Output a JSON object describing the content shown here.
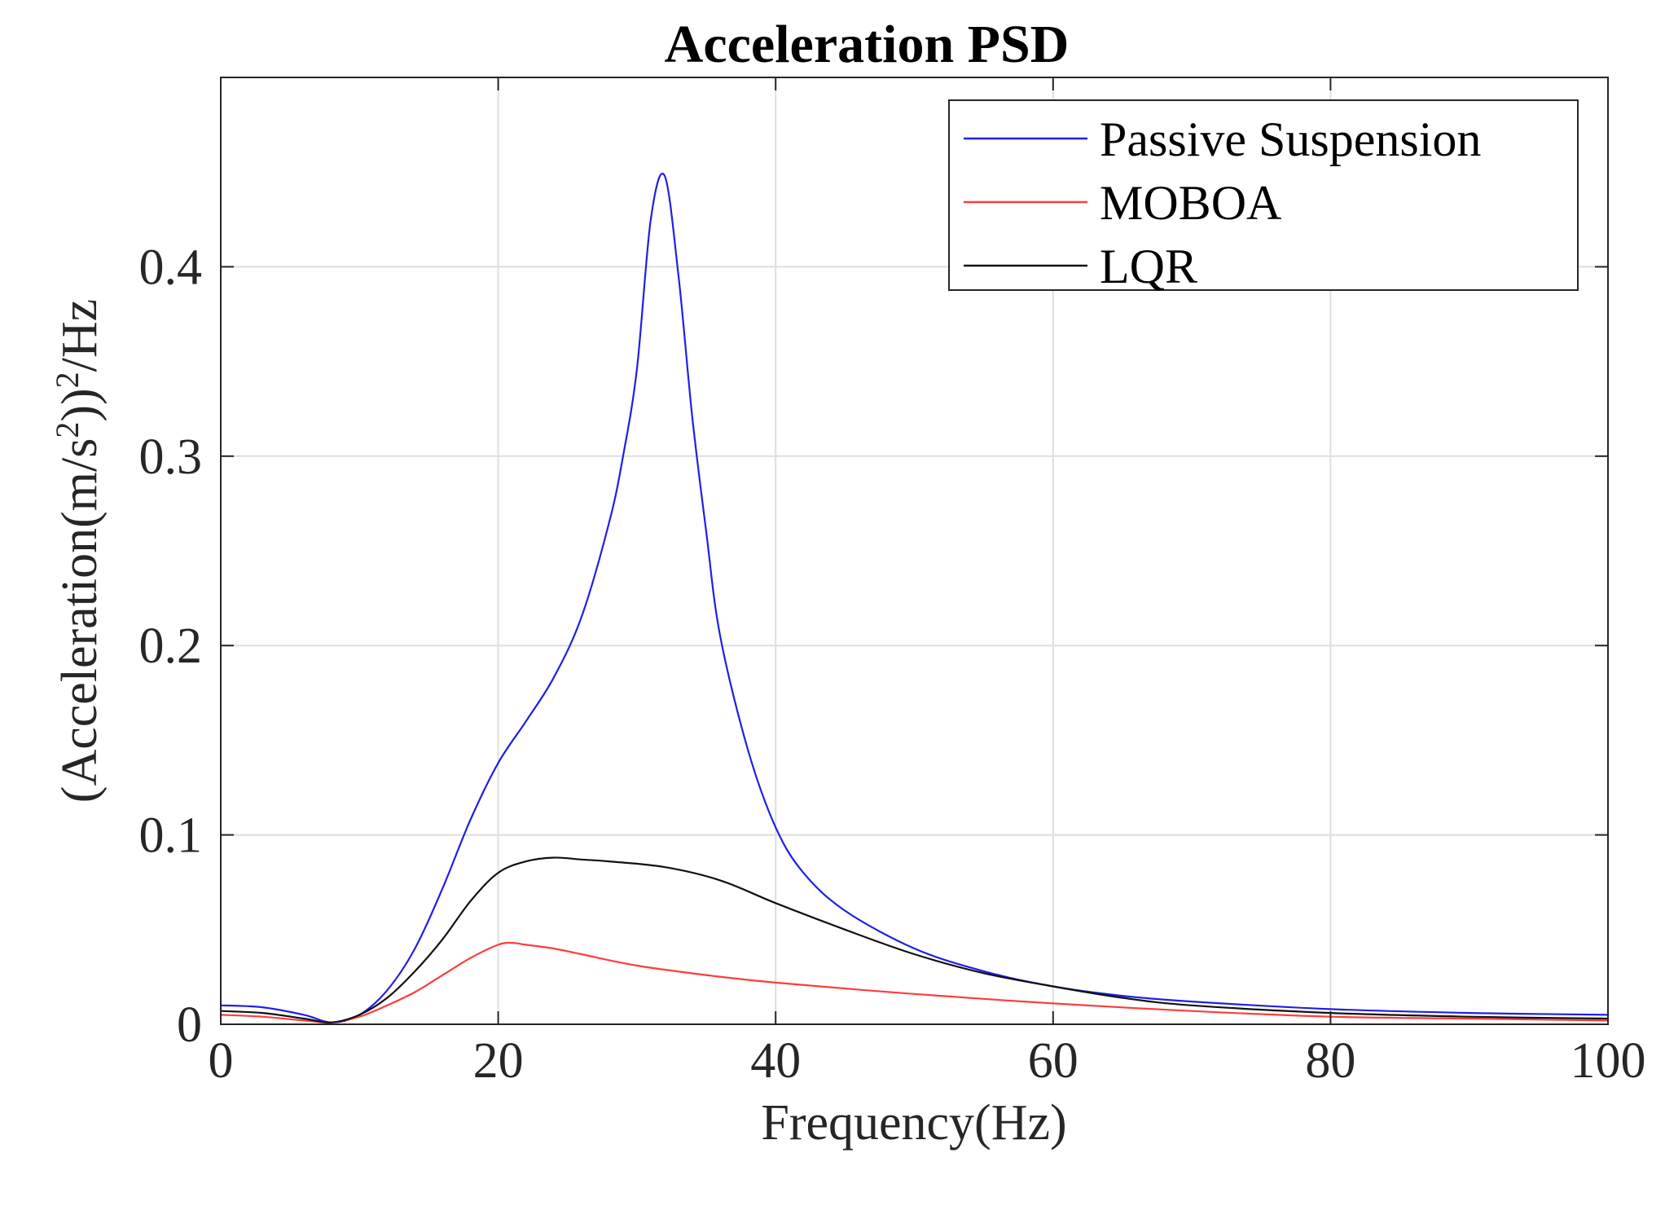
{
  "chart_data": {
    "type": "line",
    "title": "Acceleration PSD",
    "xlabel": "Frequency(Hz)",
    "ylabel": {
      "prefix": "(Acceleration(m/s",
      "sup1": "2",
      "middle": "))",
      "sup2": "2",
      "suffix": "/Hz"
    },
    "xlim": [
      0,
      100
    ],
    "ylim": [
      0,
      0.5
    ],
    "xticks": [
      0,
      20,
      40,
      60,
      80,
      100
    ],
    "xtick_labels": [
      "0",
      "20",
      "40",
      "60",
      "80",
      "100"
    ],
    "yticks": [
      0,
      0.1,
      0.2,
      0.3,
      0.4
    ],
    "ytick_labels": [
      "0",
      "0.1",
      "0.2",
      "0.3",
      "0.4"
    ],
    "grid": true,
    "legend_position": "top-right",
    "series": [
      {
        "name": "Passive Suspension",
        "color": "#1f1fe6",
        "x": [
          0,
          3,
          6,
          8,
          10,
          12,
          14,
          16,
          18,
          20,
          22,
          24,
          26,
          28,
          29,
          30,
          31,
          32,
          33,
          34,
          35,
          36,
          38,
          40,
          42,
          45,
          50,
          55,
          60,
          65,
          70,
          80,
          90,
          100
        ],
        "y": [
          0.01,
          0.009,
          0.005,
          0.001,
          0.005,
          0.018,
          0.04,
          0.072,
          0.108,
          0.138,
          0.16,
          0.183,
          0.215,
          0.265,
          0.3,
          0.346,
          0.425,
          0.448,
          0.395,
          0.32,
          0.26,
          0.205,
          0.145,
          0.104,
          0.08,
          0.06,
          0.04,
          0.028,
          0.02,
          0.015,
          0.012,
          0.008,
          0.006,
          0.005
        ]
      },
      {
        "name": "MOBOA",
        "color": "#ff3b3b",
        "x": [
          0,
          3,
          6,
          8,
          10,
          12,
          14,
          16,
          18,
          20,
          21,
          22,
          24,
          26,
          30,
          35,
          40,
          50,
          60,
          70,
          80,
          90,
          100
        ],
        "y": [
          0.005,
          0.004,
          0.002,
          0.001,
          0.004,
          0.01,
          0.017,
          0.026,
          0.035,
          0.042,
          0.043,
          0.042,
          0.04,
          0.037,
          0.031,
          0.026,
          0.022,
          0.016,
          0.011,
          0.007,
          0.004,
          0.003,
          0.002
        ]
      },
      {
        "name": "LQR",
        "color": "#111111",
        "x": [
          0,
          3,
          6,
          8,
          10,
          12,
          14,
          16,
          18,
          20,
          22,
          24,
          26,
          28,
          32,
          36,
          40,
          45,
          50,
          55,
          60,
          65,
          70,
          80,
          90,
          100
        ],
        "y": [
          0.007,
          0.006,
          0.003,
          0.001,
          0.005,
          0.014,
          0.028,
          0.045,
          0.065,
          0.08,
          0.086,
          0.088,
          0.087,
          0.086,
          0.083,
          0.076,
          0.064,
          0.05,
          0.037,
          0.027,
          0.02,
          0.014,
          0.01,
          0.006,
          0.004,
          0.003
        ]
      }
    ]
  }
}
